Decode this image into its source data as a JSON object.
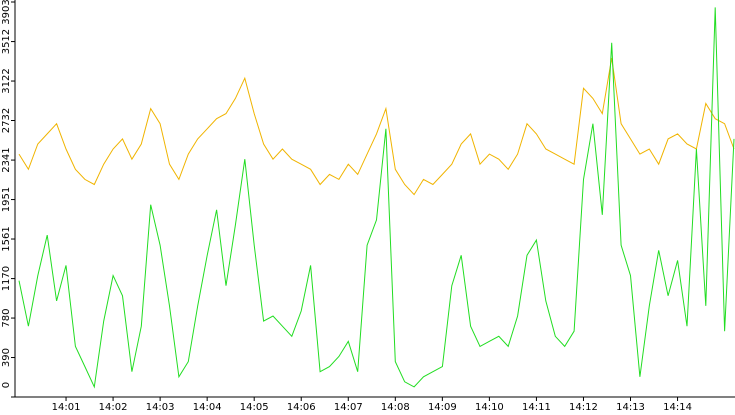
{
  "chart_data": {
    "type": "line",
    "categories": [
      null,
      null,
      null,
      null,
      null,
      "14:01",
      null,
      null,
      null,
      null,
      "14:02",
      null,
      null,
      null,
      null,
      "14:03",
      null,
      null,
      null,
      null,
      "14:04",
      null,
      null,
      null,
      null,
      "14:05",
      null,
      null,
      null,
      null,
      "14:06",
      null,
      null,
      null,
      null,
      "14:07",
      null,
      null,
      null,
      null,
      "14:08",
      null,
      null,
      null,
      null,
      "14:09",
      null,
      null,
      null,
      null,
      "14:10",
      null,
      null,
      null,
      null,
      "14:11",
      null,
      null,
      null,
      null,
      "14:12",
      null,
      null,
      null,
      null,
      "14:13",
      null,
      null,
      null,
      null,
      "14:14",
      null,
      null,
      null,
      null,
      null,
      null
    ],
    "series": [
      {
        "name": "orange",
        "color": "#f0b400",
        "values": [
          2400,
          2250,
          2500,
          2600,
          2700,
          2450,
          2250,
          2150,
          2100,
          2300,
          2450,
          2550,
          2350,
          2500,
          2850,
          2700,
          2300,
          2150,
          2400,
          2550,
          2650,
          2750,
          2800,
          2950,
          3150,
          2800,
          2500,
          2350,
          2450,
          2350,
          2300,
          2250,
          2100,
          2200,
          2150,
          2300,
          2200,
          2400,
          2600,
          2850,
          2250,
          2100,
          2000,
          2150,
          2100,
          2200,
          2300,
          2500,
          2600,
          2300,
          2400,
          2350,
          2250,
          2400,
          2700,
          2600,
          2450,
          2400,
          2350,
          2300,
          3050,
          2950,
          2800,
          3350,
          2700,
          2550,
          2400,
          2450,
          2300,
          2550,
          2600,
          2500,
          2450,
          2900,
          2750,
          2700,
          2450
        ]
      },
      {
        "name": "green",
        "color": "#22dd22",
        "values": [
          1150,
          700,
          1200,
          1600,
          950,
          1300,
          500,
          300,
          100,
          750,
          1200,
          1000,
          250,
          700,
          1900,
          1500,
          900,
          200,
          350,
          900,
          1400,
          1850,
          1100,
          1700,
          2350,
          1500,
          750,
          800,
          700,
          600,
          850,
          1300,
          250,
          300,
          400,
          550,
          250,
          1500,
          1750,
          2650,
          350,
          150,
          100,
          200,
          250,
          300,
          1100,
          1400,
          700,
          500,
          550,
          600,
          500,
          800,
          1400,
          1550,
          950,
          600,
          500,
          650,
          2150,
          2700,
          1800,
          3500,
          1500,
          1200,
          200,
          900,
          1450,
          1000,
          1350,
          700,
          2450,
          900,
          3850,
          650,
          2550
        ]
      }
    ],
    "ylim": [
      0,
      3903
    ],
    "yticks": [
      0,
      390,
      780,
      1170,
      1561,
      1951,
      2341,
      2732,
      3122,
      3512,
      3903
    ]
  }
}
